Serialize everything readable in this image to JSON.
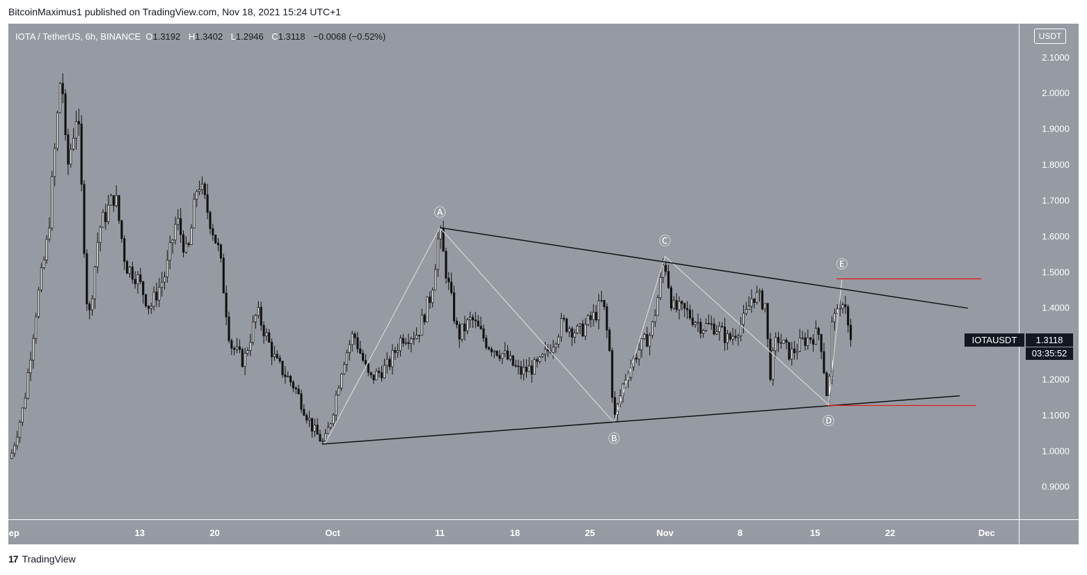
{
  "header": {
    "published_line": "BitcoinMaximus1 published on TradingView.com, Nov 18, 2021 15:24 UTC+1"
  },
  "symbol_bar": {
    "title": "IOTA / TetherUS, 6h, BINANCE",
    "open_label": "O",
    "open": "1.3192",
    "high_label": "H",
    "high": "1.3402",
    "low_label": "L",
    "low": "1.2946",
    "close_label": "C",
    "close": "1.3118",
    "change": "−0.0068 (−0.52%)"
  },
  "currency_badge": "USDT",
  "price_tag": {
    "symbol": "IOTAUSDT",
    "price": "1.3118",
    "countdown": "03:35:52"
  },
  "footer": {
    "brand": "TradingView",
    "logo_mark": "17"
  },
  "colors": {
    "plot_background": "#969aa3",
    "candle": "#111111",
    "trendline": "#111111",
    "wave_path": "#d6d6d6",
    "horizontal_level": "#e01e1e",
    "label": "#ffffff"
  },
  "chart_data": {
    "type": "candlestick",
    "title": "IOTA / TetherUS, 6h, BINANCE",
    "y_axis": {
      "ticks": [
        "2.1000",
        "2.0000",
        "1.9000",
        "1.8000",
        "1.7000",
        "1.6000",
        "1.5000",
        "1.4000",
        "1.3000",
        "1.2000",
        "1.1000",
        "1.0000",
        "0.9000"
      ],
      "ylim": [
        0.81,
        2.195
      ]
    },
    "x_axis": {
      "ticks": [
        "Sep",
        "13",
        "20",
        "Oct",
        "11",
        "18",
        "25",
        "Nov",
        "8",
        "15",
        "22",
        "Dec"
      ],
      "tick_dates": [
        "2021-09-01",
        "2021-09-13",
        "2021-09-20",
        "2021-10-01",
        "2021-10-11",
        "2021-10-18",
        "2021-10-25",
        "2021-11-01",
        "2021-11-08",
        "2021-11-15",
        "2021-11-22",
        "2021-12-01"
      ],
      "xlim": [
        "2021-08-31T18:00",
        "2021-12-04T00:00"
      ]
    },
    "price_path": [
      {
        "date": "2021-09-01T00:00",
        "price": 0.98
      },
      {
        "date": "2021-09-02T06:00",
        "price": 1.13
      },
      {
        "date": "2021-09-03T12:00",
        "price": 1.42
      },
      {
        "date": "2021-09-04T12:00",
        "price": 1.6
      },
      {
        "date": "2021-09-05T18:00",
        "price": 2.08
      },
      {
        "date": "2021-09-06T06:00",
        "price": 1.78
      },
      {
        "date": "2021-09-07T06:00",
        "price": 1.96
      },
      {
        "date": "2021-09-08T06:00",
        "price": 1.35
      },
      {
        "date": "2021-09-09T06:00",
        "price": 1.62
      },
      {
        "date": "2021-09-10T18:00",
        "price": 1.72
      },
      {
        "date": "2021-09-11T18:00",
        "price": 1.52
      },
      {
        "date": "2021-09-12T18:00",
        "price": 1.49
      },
      {
        "date": "2021-09-14T00:00",
        "price": 1.4
      },
      {
        "date": "2021-09-15T12:00",
        "price": 1.5
      },
      {
        "date": "2021-09-16T12:00",
        "price": 1.65
      },
      {
        "date": "2021-09-17T12:00",
        "price": 1.54
      },
      {
        "date": "2021-09-18T12:00",
        "price": 1.76
      },
      {
        "date": "2021-09-19T12:00",
        "price": 1.66
      },
      {
        "date": "2021-09-20T12:00",
        "price": 1.55
      },
      {
        "date": "2021-09-21T12:00",
        "price": 1.3
      },
      {
        "date": "2021-09-22T18:00",
        "price": 1.25
      },
      {
        "date": "2021-09-24T00:00",
        "price": 1.39
      },
      {
        "date": "2021-09-25T18:00",
        "price": 1.25
      },
      {
        "date": "2021-09-27T12:00",
        "price": 1.18
      },
      {
        "date": "2021-09-29T06:00",
        "price": 1.06
      },
      {
        "date": "2021-09-30T06:00",
        "price": 1.02
      },
      {
        "date": "2021-10-01T00:00",
        "price": 1.1
      },
      {
        "date": "2021-10-02T00:00",
        "price": 1.25
      },
      {
        "date": "2021-10-03T00:00",
        "price": 1.33
      },
      {
        "date": "2021-10-04T12:00",
        "price": 1.2
      },
      {
        "date": "2021-10-06T06:00",
        "price": 1.24
      },
      {
        "date": "2021-10-07T12:00",
        "price": 1.32
      },
      {
        "date": "2021-10-09T00:00",
        "price": 1.33
      },
      {
        "date": "2021-10-10T06:00",
        "price": 1.44
      },
      {
        "date": "2021-10-11T00:00",
        "price": 1.62
      },
      {
        "date": "2021-10-11T18:00",
        "price": 1.48
      },
      {
        "date": "2021-10-12T18:00",
        "price": 1.32
      },
      {
        "date": "2021-10-14T00:00",
        "price": 1.37
      },
      {
        "date": "2021-10-15T12:00",
        "price": 1.3
      },
      {
        "date": "2021-10-17T00:00",
        "price": 1.27
      },
      {
        "date": "2021-10-18T12:00",
        "price": 1.22
      },
      {
        "date": "2021-10-20T06:00",
        "price": 1.24
      },
      {
        "date": "2021-10-21T12:00",
        "price": 1.3
      },
      {
        "date": "2021-10-22T12:00",
        "price": 1.36
      },
      {
        "date": "2021-10-24T00:00",
        "price": 1.33
      },
      {
        "date": "2021-10-25T12:00",
        "price": 1.38
      },
      {
        "date": "2021-10-26T06:00",
        "price": 1.42
      },
      {
        "date": "2021-10-27T00:00",
        "price": 1.25
      },
      {
        "date": "2021-10-27T06:00",
        "price": 1.08
      },
      {
        "date": "2021-10-28T06:00",
        "price": 1.2
      },
      {
        "date": "2021-10-29T12:00",
        "price": 1.28
      },
      {
        "date": "2021-10-30T18:00",
        "price": 1.33
      },
      {
        "date": "2021-10-31T12:00",
        "price": 1.45
      },
      {
        "date": "2021-11-01T00:00",
        "price": 1.54
      },
      {
        "date": "2021-11-01T18:00",
        "price": 1.4
      },
      {
        "date": "2021-11-03T00:00",
        "price": 1.39
      },
      {
        "date": "2021-11-04T12:00",
        "price": 1.35
      },
      {
        "date": "2021-11-05T18:00",
        "price": 1.35
      },
      {
        "date": "2021-11-07T00:00",
        "price": 1.31
      },
      {
        "date": "2021-11-08T12:00",
        "price": 1.37
      },
      {
        "date": "2021-11-09T06:00",
        "price": 1.44
      },
      {
        "date": "2021-11-10T12:00",
        "price": 1.41
      },
      {
        "date": "2021-11-10T18:00",
        "price": 1.2
      },
      {
        "date": "2021-11-11T12:00",
        "price": 1.32
      },
      {
        "date": "2021-11-12T18:00",
        "price": 1.27
      },
      {
        "date": "2021-11-14T00:00",
        "price": 1.31
      },
      {
        "date": "2021-11-15T12:00",
        "price": 1.33
      },
      {
        "date": "2021-11-16T06:00",
        "price": 1.13
      },
      {
        "date": "2021-11-16T18:00",
        "price": 1.42
      },
      {
        "date": "2021-11-17T06:00",
        "price": 1.36
      },
      {
        "date": "2021-11-17T18:00",
        "price": 1.45
      },
      {
        "date": "2021-11-18T06:00",
        "price": 1.3118
      }
    ],
    "last_price": 1.3118,
    "trendlines": [
      {
        "from": {
          "date": "2021-10-11T00:00",
          "price": 1.625
        },
        "to": {
          "date": "2021-11-29T06:00",
          "price": 1.4
        }
      },
      {
        "from": {
          "date": "2021-09-30T00:00",
          "price": 1.02
        },
        "to": {
          "date": "2021-11-28T12:00",
          "price": 1.155
        }
      }
    ],
    "wave_points": [
      {
        "label": "",
        "date": "2021-09-30T06:00",
        "price": 1.02
      },
      {
        "label": "Ⓐ",
        "date": "2021-10-11T00:00",
        "price": 1.625
      },
      {
        "label": "Ⓑ",
        "date": "2021-10-27T06:00",
        "price": 1.08
      },
      {
        "label": "Ⓒ",
        "date": "2021-11-01T00:00",
        "price": 1.545
      },
      {
        "label": "Ⓓ",
        "date": "2021-11-16T06:00",
        "price": 1.13
      },
      {
        "label": "Ⓔ",
        "date": "2021-11-17T12:00",
        "price": 1.48
      }
    ],
    "horizontal_levels": [
      {
        "price": 1.482,
        "from": "2021-11-17T00:00",
        "to": "2021-11-30T12:00"
      },
      {
        "price": 1.128,
        "from": "2021-11-16T00:00",
        "to": "2021-11-30T00:00"
      }
    ]
  }
}
